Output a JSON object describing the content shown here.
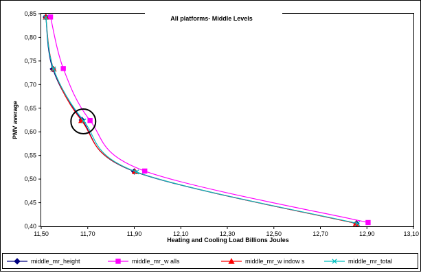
{
  "chart_data": {
    "type": "line",
    "title": "All platforms- Middle Levels",
    "xlabel": "Heating and Cooling Load Billions Joules",
    "ylabel": "PMV average",
    "xlim": [
      11.5,
      13.1
    ],
    "ylim": [
      0.4,
      0.85
    ],
    "x_ticks": [
      "11,50",
      "11,70",
      "11,90",
      "12,10",
      "12,30",
      "12,50",
      "12,70",
      "12,90",
      "13,10"
    ],
    "y_ticks": [
      "0,85",
      "0,80",
      "0,75",
      "0,70",
      "0,65",
      "0,60",
      "0,55",
      "0,50",
      "0,45",
      "0,40"
    ],
    "grid": false,
    "legend_position": "bottom",
    "annotation": "circle around the points near x 11,68 / y 0,62",
    "series": [
      {
        "name": "middle_mr_height",
        "color": "#000080",
        "marker": "diamond",
        "points": [
          [
            11.52,
            0.843
          ],
          [
            11.55,
            0.733
          ],
          [
            11.675,
            0.625
          ],
          [
            11.9,
            0.516
          ],
          [
            12.855,
            0.406
          ]
        ]
      },
      {
        "name": "middle_mr_w alls",
        "color": "#ff00ff",
        "marker": "square",
        "points": [
          [
            11.54,
            0.843
          ],
          [
            11.595,
            0.734
          ],
          [
            11.71,
            0.624
          ],
          [
            11.945,
            0.517
          ],
          [
            12.905,
            0.408
          ]
        ]
      },
      {
        "name": "middle_mr_w indow s",
        "color": "#ff0000",
        "marker": "triangle",
        "points": [
          [
            11.52,
            0.843
          ],
          [
            11.553,
            0.733
          ],
          [
            11.673,
            0.624
          ],
          [
            11.903,
            0.516
          ],
          [
            12.853,
            0.406
          ]
        ]
      },
      {
        "name": "middle_mr_total",
        "color": "#00c0c0",
        "marker": "x",
        "points": [
          [
            11.52,
            0.842
          ],
          [
            11.553,
            0.733
          ],
          [
            11.683,
            0.623
          ],
          [
            11.91,
            0.515
          ],
          [
            12.86,
            0.406
          ]
        ]
      }
    ]
  }
}
